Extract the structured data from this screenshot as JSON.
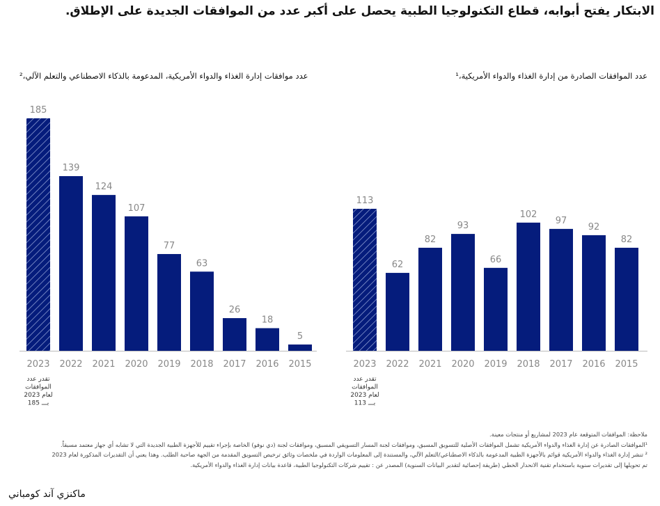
{
  "title": "الابتكار يفتح أبوابه، قطاع التكنولوجيا الطبية يحصل على أكبر عدد من الموافقات الجديدة على الإطلاق.",
  "colors": {
    "bar": "#051c7c",
    "axis": "#bbbbbb",
    "label": "#888888"
  },
  "chart_data": [
    {
      "type": "bar",
      "title": "عدد موافقات إدارة الغذاء والدواء الأمريكية، المدعومة بالذكاء الاصطناعي والتعلم الآلي،²",
      "categories": [
        "2023",
        "2022",
        "2021",
        "2020",
        "2019",
        "2018",
        "2017",
        "2016",
        "2015"
      ],
      "values": [
        185,
        139,
        124,
        107,
        77,
        63,
        26,
        18,
        5
      ],
      "estimated_first": true,
      "estimate_note": [
        "تقدر عدد",
        "الموافقات",
        "لعام 2023",
        "بـــ 185"
      ]
    },
    {
      "type": "bar",
      "title": "عدد الموافقات الصادرة من إدارة الغذاء والدواء الأمريكية،¹",
      "categories": [
        "2023",
        "2022",
        "2021",
        "2020",
        "2019",
        "2018",
        "2017",
        "2016",
        "2015"
      ],
      "values": [
        113,
        62,
        82,
        93,
        66,
        102,
        97,
        92,
        82
      ],
      "estimated_first": true,
      "estimate_note": [
        "تقدر عدد",
        "الموافقات",
        "لعام 2023",
        "بـــ 113"
      ]
    }
  ],
  "notes": [
    "ملاحظة: الموافقات المتوقعة عام 2023 لمشاريع أو منتجات معينة.",
    "¹الموافقات الصادرة عن إدارة الغذاء والدواء الأمريكية تشمل الموافقات الأصلية للتسويق المسبق، وموافقات لجنة المسار التسويقي المسبق، وموافقات لجنة (دي نوفو) الخاصة بإجراء تقييم للأجهزة الطبية الجديدة التي لا تشابه أي جهاز معتمد مسبقاً.",
    "² تنشر إدارة الغذاء والدواء الأمريكية قوائم بالأجهزة الطبية المدعومة بالذكاء الاصطناعي/التعلم الآلي، والمستندة إلى المعلومات الواردة في ملخصات وثائق ترخيص التسويق المقدمة من الجهة صاحبة الطلب. وهذا يعني أن التقديرات المذكورة لعام 2023",
    "تم تحويلها إلى تقديرات سنوية باستخدام تقنية الانحدار الخطي (طريقة إحصائية لتقدير البيانات السنوية) المصدر عن : تقييم شركات التكنولوجيا الطبية، قاعدة بيانات إدارة الغذاء والدواء الأمريكية."
  ],
  "logo": "ماكنزي آند كومباني"
}
